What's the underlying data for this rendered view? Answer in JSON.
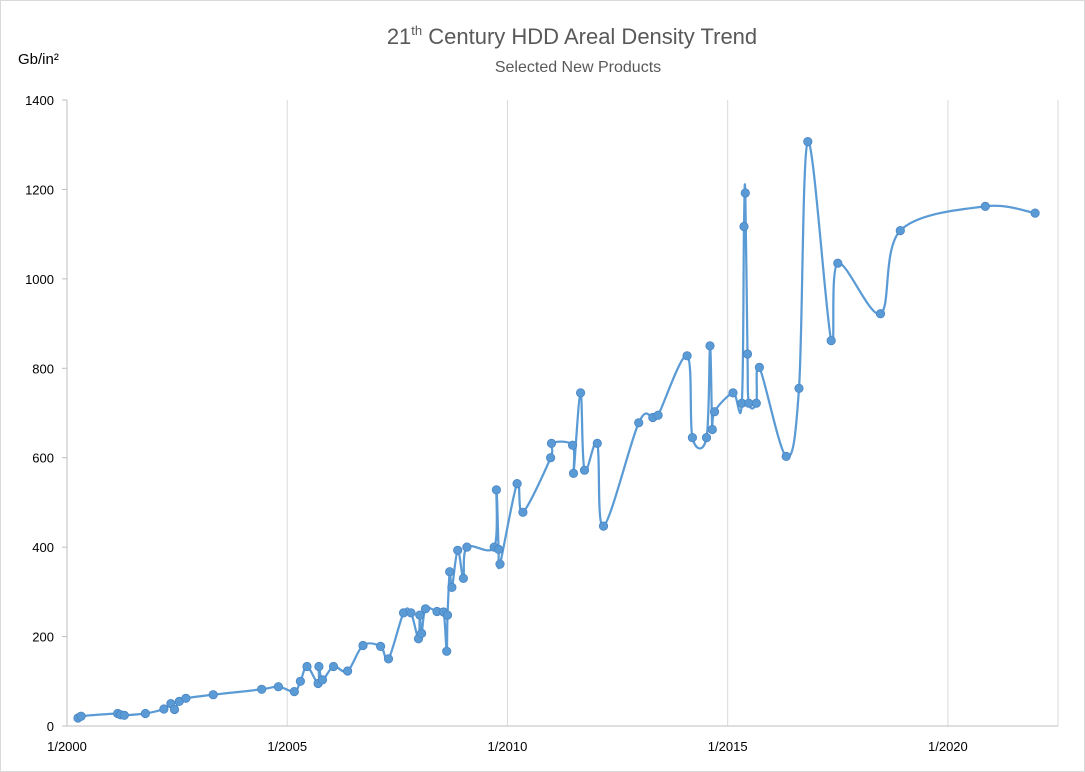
{
  "chart_data": {
    "type": "line",
    "title": {
      "main": "21",
      "superscript": "th",
      "rest": " Century HDD Areal Density Trend"
    },
    "subtitle": "Selected New Products",
    "ylabel": "Gb/in²",
    "xlabel": "",
    "xlim": [
      2000.0,
      2022.5
    ],
    "ylim": [
      0,
      1400
    ],
    "y_ticks": [
      0,
      200,
      400,
      600,
      800,
      1000,
      1200,
      1400
    ],
    "x_ticks": [
      {
        "value": 2000,
        "label": "1/2000"
      },
      {
        "value": 2005,
        "label": "1/2005"
      },
      {
        "value": 2010,
        "label": "1/2010"
      },
      {
        "value": 2015,
        "label": "1/2015"
      },
      {
        "value": 2020,
        "label": "1/2020"
      }
    ],
    "grid": {
      "vertical": true,
      "horizontal": false
    },
    "smoothed": true,
    "series_color": "#5b9bd5",
    "series": [
      {
        "x": [
          2000.25,
          2000.32,
          2001.15,
          2001.22,
          2001.3,
          2001.78,
          2002.2,
          2002.36,
          2002.44,
          2002.55,
          2002.7,
          2003.32,
          2004.42,
          2004.8,
          2005.16,
          2005.3,
          2005.45,
          2005.7,
          2005.72,
          2005.8,
          2006.05,
          2006.37,
          2006.72,
          2007.12,
          2007.3,
          2007.64,
          2007.81,
          2007.98,
          2008.01,
          2008.05,
          2008.14,
          2008.4,
          2008.55,
          2008.62,
          2008.64,
          2008.69,
          2008.74,
          2008.87,
          2009.0,
          2009.08,
          2009.7,
          2009.75,
          2009.8,
          2009.83,
          2010.22,
          2010.35,
          2010.98,
          2011.0,
          2011.48,
          2011.5,
          2011.66,
          2011.75,
          2012.04,
          2012.18,
          2012.98,
          2013.3,
          2013.42,
          2014.08,
          2014.2,
          2014.52,
          2014.6,
          2014.65,
          2014.7,
          2015.12,
          2015.32,
          2015.37,
          2015.4,
          2015.45,
          2015.48,
          2015.65,
          2015.72,
          2016.33,
          2016.62,
          2016.82,
          2017.35,
          2017.5,
          2018.47,
          2018.92,
          2020.85,
          2021.98
        ],
        "y": [
          18,
          22,
          28,
          25,
          24,
          28,
          38,
          50,
          37,
          55,
          62,
          70,
          82,
          88,
          77,
          100,
          133,
          95,
          133,
          103,
          133,
          123,
          180,
          178,
          150,
          253,
          253,
          195,
          248,
          207,
          262,
          256,
          255,
          167,
          248,
          345,
          310,
          393,
          330,
          400,
          400,
          528,
          395,
          362,
          542,
          478,
          600,
          632,
          628,
          565,
          745,
          572,
          632,
          447,
          678,
          690,
          695,
          828,
          645,
          645,
          850,
          663,
          703,
          745,
          722,
          1117,
          1192,
          832,
          722,
          722,
          802,
          603,
          755,
          1307,
          862,
          1035,
          922,
          1108,
          1162,
          1147
        ]
      }
    ]
  }
}
